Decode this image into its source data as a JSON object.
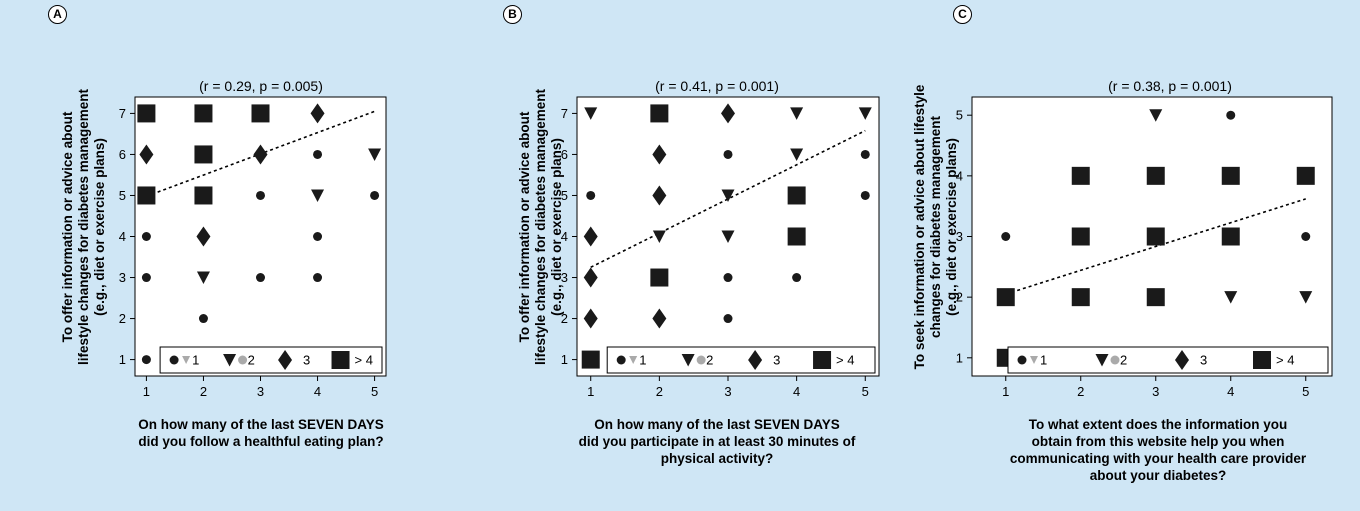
{
  "panels": [
    {
      "letter": "A",
      "subtitle": "(r = 0.29, p = 0.005)",
      "ylabel_lines": [
        "To offer information or advice about",
        "lifestyle changes for diabetes management",
        "(e.g., diet or exercise plans)"
      ],
      "xlabel_lines": [
        "On how many of the last SEVEN DAYS",
        "did you follow a healthful eating plan?"
      ]
    },
    {
      "letter": "B",
      "subtitle": "(r = 0.41, p = 0.001)",
      "ylabel_lines": [
        "To offer information or advice about",
        "lifestyle changes for diabetes management",
        "(e.g., diet or exercise plans)"
      ],
      "xlabel_lines": [
        "On how many of the last SEVEN DAYS",
        "did you participate in at least 30 minutes of",
        "physical activity?"
      ]
    },
    {
      "letter": "C",
      "subtitle": "(r = 0.38, p = 0.001)",
      "ylabel_lines": [
        "To seek information or advice about lifestyle",
        "changes for diabetes management",
        "(e.g., diet or exercise plans)"
      ],
      "xlabel_lines": [
        "To what extent does the information you",
        "obtain from this website help you when",
        "communicating with your health care provider",
        "about your diabetes?"
      ]
    }
  ],
  "legend_labels": [
    "1",
    "2",
    "3",
    "> 4"
  ],
  "colors": {
    "background": "#cfe6f5",
    "marker": "#1a1a1a",
    "legend_gray": "#aaaaaa"
  },
  "chart_data": [
    {
      "type": "scatter",
      "title": "(r = 0.29, p = 0.005)",
      "xlim": [
        0.8,
        5.2
      ],
      "ylim": [
        0.6,
        7.4
      ],
      "x_ticks": [
        1,
        2,
        3,
        4,
        5
      ],
      "y_ticks": [
        1,
        2,
        3,
        4,
        5,
        6,
        7
      ],
      "legend": {
        "placement": "bottom",
        "entries": [
          "1",
          "2",
          "3",
          "> 4"
        ],
        "markers": [
          "circle",
          "triangle",
          "diamond",
          "square"
        ]
      },
      "points": [
        {
          "x": 1,
          "y": 1,
          "size": "circle"
        },
        {
          "x": 1,
          "y": 3,
          "size": "circle"
        },
        {
          "x": 1,
          "y": 4,
          "size": "circle"
        },
        {
          "x": 1,
          "y": 5,
          "size": "square"
        },
        {
          "x": 1,
          "y": 6,
          "size": "diamond"
        },
        {
          "x": 1,
          "y": 7,
          "size": "square"
        },
        {
          "x": 2,
          "y": 2,
          "size": "circle"
        },
        {
          "x": 2,
          "y": 3,
          "size": "triangle"
        },
        {
          "x": 2,
          "y": 4,
          "size": "diamond"
        },
        {
          "x": 2,
          "y": 5,
          "size": "square"
        },
        {
          "x": 2,
          "y": 6,
          "size": "square"
        },
        {
          "x": 2,
          "y": 7,
          "size": "square"
        },
        {
          "x": 3,
          "y": 3,
          "size": "circle"
        },
        {
          "x": 3,
          "y": 5,
          "size": "circle"
        },
        {
          "x": 3,
          "y": 6,
          "size": "diamond"
        },
        {
          "x": 3,
          "y": 7,
          "size": "square"
        },
        {
          "x": 4,
          "y": 3,
          "size": "circle"
        },
        {
          "x": 4,
          "y": 4,
          "size": "circle"
        },
        {
          "x": 4,
          "y": 5,
          "size": "triangle"
        },
        {
          "x": 4,
          "y": 6,
          "size": "circle"
        },
        {
          "x": 4,
          "y": 7,
          "size": "diamond"
        },
        {
          "x": 5,
          "y": 5,
          "size": "circle"
        },
        {
          "x": 5,
          "y": 6,
          "size": "triangle"
        }
      ],
      "trend_line": {
        "x": [
          1,
          5
        ],
        "y": [
          4.98,
          7.05
        ]
      }
    },
    {
      "type": "scatter",
      "title": "(r = 0.41, p = 0.001)",
      "xlim": [
        0.8,
        5.2
      ],
      "ylim": [
        0.6,
        7.4
      ],
      "x_ticks": [
        1,
        2,
        3,
        4,
        5
      ],
      "y_ticks": [
        1,
        2,
        3,
        4,
        5,
        6,
        7
      ],
      "legend": {
        "placement": "bottom",
        "entries": [
          "1",
          "2",
          "3",
          "> 4"
        ],
        "markers": [
          "circle",
          "triangle",
          "diamond",
          "square"
        ]
      },
      "points": [
        {
          "x": 1,
          "y": 1,
          "size": "square"
        },
        {
          "x": 1,
          "y": 2,
          "size": "diamond"
        },
        {
          "x": 1,
          "y": 3,
          "size": "diamond"
        },
        {
          "x": 1,
          "y": 4,
          "size": "diamond"
        },
        {
          "x": 1,
          "y": 5,
          "size": "circle"
        },
        {
          "x": 1,
          "y": 7,
          "size": "triangle"
        },
        {
          "x": 2,
          "y": 2,
          "size": "diamond"
        },
        {
          "x": 2,
          "y": 3,
          "size": "square"
        },
        {
          "x": 2,
          "y": 4,
          "size": "triangle"
        },
        {
          "x": 2,
          "y": 5,
          "size": "diamond"
        },
        {
          "x": 2,
          "y": 6,
          "size": "diamond"
        },
        {
          "x": 2,
          "y": 7,
          "size": "square"
        },
        {
          "x": 3,
          "y": 2,
          "size": "circle"
        },
        {
          "x": 3,
          "y": 3,
          "size": "circle"
        },
        {
          "x": 3,
          "y": 4,
          "size": "triangle"
        },
        {
          "x": 3,
          "y": 5,
          "size": "triangle"
        },
        {
          "x": 3,
          "y": 6,
          "size": "circle"
        },
        {
          "x": 3,
          "y": 7,
          "size": "diamond"
        },
        {
          "x": 4,
          "y": 3,
          "size": "circle"
        },
        {
          "x": 4,
          "y": 4,
          "size": "square"
        },
        {
          "x": 4,
          "y": 5,
          "size": "square"
        },
        {
          "x": 4,
          "y": 6,
          "size": "triangle"
        },
        {
          "x": 4,
          "y": 7,
          "size": "triangle"
        },
        {
          "x": 5,
          "y": 5,
          "size": "circle"
        },
        {
          "x": 5,
          "y": 6,
          "size": "circle"
        },
        {
          "x": 5,
          "y": 7,
          "size": "triangle"
        }
      ],
      "trend_line": {
        "x": [
          1,
          5
        ],
        "y": [
          3.25,
          6.58
        ]
      }
    },
    {
      "type": "scatter",
      "title": "(r = 0.38, p = 0.001)",
      "xlim": [
        0.55,
        5.35
      ],
      "ylim": [
        0.7,
        5.3
      ],
      "x_ticks": [
        1,
        2,
        3,
        4,
        5
      ],
      "y_ticks": [
        1,
        2,
        3,
        4,
        5
      ],
      "legend": {
        "placement": "bottom",
        "entries": [
          "1",
          "2",
          "3",
          "> 4"
        ],
        "markers": [
          "circle",
          "triangle",
          "diamond",
          "square"
        ]
      },
      "points": [
        {
          "x": 1,
          "y": 1,
          "size": "square"
        },
        {
          "x": 1,
          "y": 2,
          "size": "square"
        },
        {
          "x": 1,
          "y": 3,
          "size": "circle"
        },
        {
          "x": 2,
          "y": 2,
          "size": "square"
        },
        {
          "x": 2,
          "y": 3,
          "size": "square"
        },
        {
          "x": 2,
          "y": 4,
          "size": "square"
        },
        {
          "x": 3,
          "y": 2,
          "size": "square"
        },
        {
          "x": 3,
          "y": 3,
          "size": "square"
        },
        {
          "x": 3,
          "y": 4,
          "size": "square"
        },
        {
          "x": 3,
          "y": 5,
          "size": "triangle"
        },
        {
          "x": 4,
          "y": 2,
          "size": "triangle"
        },
        {
          "x": 4,
          "y": 3,
          "size": "square"
        },
        {
          "x": 4,
          "y": 4,
          "size": "square"
        },
        {
          "x": 4,
          "y": 5,
          "size": "circle"
        },
        {
          "x": 5,
          "y": 2,
          "size": "triangle"
        },
        {
          "x": 5,
          "y": 3,
          "size": "circle"
        },
        {
          "x": 5,
          "y": 4,
          "size": "square"
        }
      ],
      "trend_line": {
        "x": [
          1,
          5
        ],
        "y": [
          2.05,
          3.62
        ]
      }
    }
  ]
}
